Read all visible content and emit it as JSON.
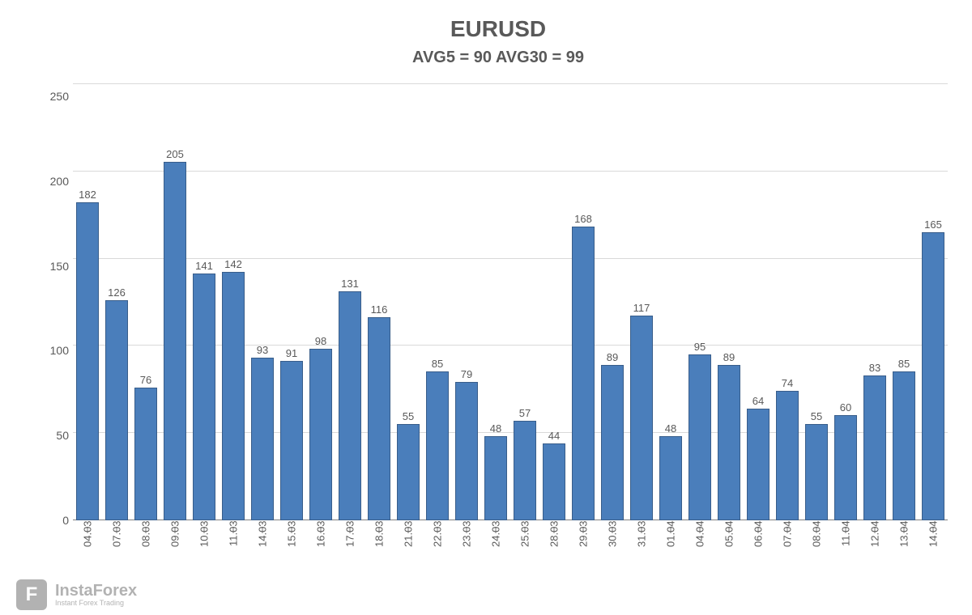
{
  "chart": {
    "type": "bar",
    "title": "EURUSD",
    "subtitle": "AVG5 = 90 AVG30 = 99",
    "title_fontsize": 28,
    "subtitle_fontsize": 20,
    "title_color": "#595959",
    "categories": [
      "04.03",
      "07.03",
      "08.03",
      "09.03",
      "10.03",
      "11.03",
      "14.03",
      "15.03",
      "16.03",
      "17.03",
      "18.03",
      "21.03",
      "22.03",
      "23.03",
      "24.03",
      "25.03",
      "28.03",
      "29.03",
      "30.03",
      "31.03",
      "01.04",
      "04.04",
      "05.04",
      "06.04",
      "07.04",
      "08.04",
      "11.04",
      "12.04",
      "13.04",
      "14.04"
    ],
    "values": [
      182,
      126,
      76,
      205,
      141,
      142,
      93,
      91,
      98,
      131,
      116,
      55,
      85,
      79,
      48,
      57,
      44,
      168,
      89,
      117,
      48,
      95,
      89,
      64,
      74,
      55,
      60,
      83,
      85,
      165
    ],
    "ylim": [
      0,
      250
    ],
    "ytick_step": 50,
    "yticks": [
      250,
      200,
      150,
      100,
      50,
      0
    ],
    "bar_color": "#4a7ebb",
    "bar_border_color": "#385d8a",
    "background_color": "#ffffff",
    "grid_color": "#d9d9d9",
    "axis_color": "#808080",
    "label_color": "#595959",
    "label_fontsize": 13,
    "tick_fontsize": 14,
    "bar_width": 0.88
  },
  "watermark": {
    "icon_letter": "F",
    "brand": "InstaForex",
    "tagline": "Instant Forex Trading"
  }
}
